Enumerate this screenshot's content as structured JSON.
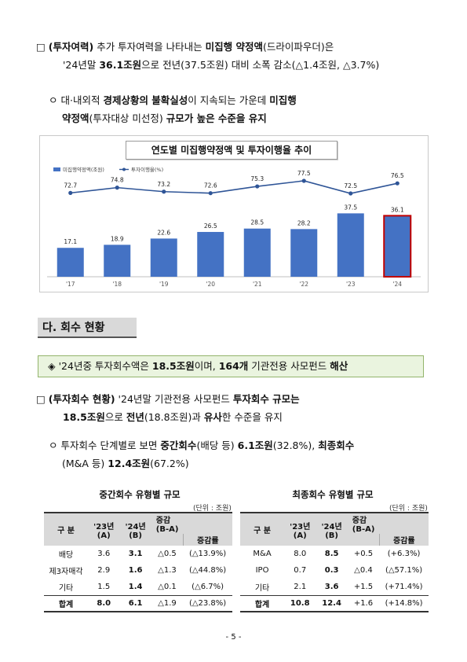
{
  "para1": {
    "marker": "□",
    "label": "(투자여력)",
    "t1": " 추가 투자여력을 나타내는 ",
    "b1": "미집행 약정액",
    "t2": "(드라이파우더)은",
    "t3": "'24년말 ",
    "b2": "36.1조원",
    "t4": "으로 전년(37.5조원) 대비 소폭 감소(△1.4조원, △3.7%)"
  },
  "para2": {
    "marker": "ㅇ",
    "t1": " 대·내외적 ",
    "b1": "경제상황의 불확실성",
    "t2": "이 지속되는 가운데 ",
    "b2": "미집행",
    "b3": "약정액",
    "t3": "(투자대상 미선정) ",
    "b4": "규모가 높은 수준을 유지"
  },
  "chart": {
    "title": "연도별 미집행약정액 및 투자이행율 추이",
    "legend_bar": "미집행약정액(조원)",
    "legend_line": "투자이행율(%)",
    "bar_color": "#4472c4",
    "highlight_color": "#c00000",
    "line_color": "#2f5597"
  },
  "chart_data": {
    "type": "bar",
    "categories": [
      "'17",
      "'18",
      "'19",
      "'20",
      "'21",
      "'22",
      "'23",
      "'24"
    ],
    "series": [
      {
        "name": "미집행약정액(조원)",
        "type": "bar",
        "values": [
          17.1,
          18.9,
          22.6,
          26.5,
          28.5,
          28.2,
          37.5,
          36.1
        ]
      },
      {
        "name": "투자이행율(%)",
        "type": "line",
        "values": [
          72.7,
          74.8,
          73.2,
          72.6,
          75.3,
          77.5,
          72.5,
          76.5
        ]
      }
    ],
    "title": "연도별 미집행약정액 및 투자이행율 추이",
    "legend": "top-left"
  },
  "section": {
    "heading": "다. 회수 현황"
  },
  "summary": {
    "marker": "◈",
    "t1": " '24년중 투자회수액은 ",
    "b1": "18.5조원",
    "t2": "이며, ",
    "b2": "164개",
    "t3": " 기관전용 사모펀드 ",
    "b3": "해산"
  },
  "para3": {
    "marker": "□",
    "label": "(투자회수 현황)",
    "t1": " '24년말 기관전용 사모펀드 ",
    "b1": "투자회수 규모는",
    "b2": "18.5조원",
    "t2": "으로 ",
    "b3": "전년",
    "t3": "(18.8조원)과 ",
    "b4": "유사",
    "t4": "한 수준을 유지"
  },
  "para4": {
    "marker": "ㅇ",
    "t1": " 투자회수 단계별로 보면 ",
    "b1": "중간회수",
    "t2": "(배당 등) ",
    "b2": "6.1조원",
    "t3": "(32.8%), ",
    "b3": "최종회수",
    "t4": "(M&A 등) ",
    "b4": "12.4조원",
    "t5": "(67.2%)"
  },
  "table_left": {
    "title": "중간회수 유형별 규모",
    "unit": "(단위 : 조원)",
    "headers": {
      "type": "구 분",
      "y23": "'23년\n(A)",
      "y24": "'24년\n(B)",
      "diff": "증감\n(B-A)",
      "rate": "증감률"
    },
    "rows": [
      {
        "name": "배당",
        "a": "3.6",
        "b": "3.1",
        "diff": "△0.5",
        "rate": "(△13.9%)"
      },
      {
        "name": "제3자매각",
        "a": "2.9",
        "b": "1.6",
        "diff": "△1.3",
        "rate": "(△44.8%)"
      },
      {
        "name": "기타",
        "a": "1.5",
        "b": "1.4",
        "diff": "△0.1",
        "rate": "(△6.7%)"
      }
    ],
    "total": {
      "name": "합계",
      "a": "8.0",
      "b": "6.1",
      "diff": "△1.9",
      "rate": "(△23.8%)"
    }
  },
  "table_right": {
    "title": "최종회수 유형별 규모",
    "unit": "(단위 : 조원)",
    "headers": {
      "type": "구 분",
      "y23": "'23년\n(A)",
      "y24": "'24년\n(B)",
      "diff": "증감\n(B-A)",
      "rate": "증감률"
    },
    "rows": [
      {
        "name": "M&A",
        "a": "8.0",
        "b": "8.5",
        "diff": "+0.5",
        "rate": "(+6.3%)"
      },
      {
        "name": "IPO",
        "a": "0.7",
        "b": "0.3",
        "diff": "△0.4",
        "rate": "(△57.1%)"
      },
      {
        "name": "기타",
        "a": "2.1",
        "b": "3.6",
        "diff": "+1.5",
        "rate": "(+71.4%)"
      }
    ],
    "total": {
      "name": "합계",
      "a": "10.8",
      "b": "12.4",
      "diff": "+1.6",
      "rate": "(+14.8%)"
    }
  },
  "page_number": "- 5 -"
}
